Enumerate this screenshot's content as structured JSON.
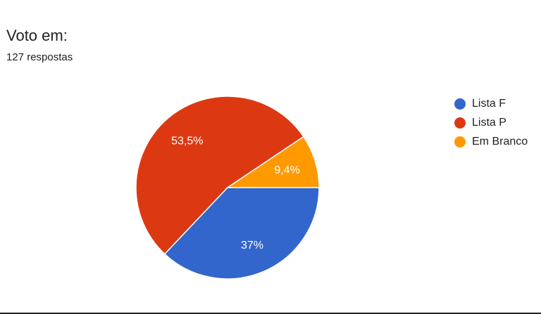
{
  "header": {
    "title": "Voto em:",
    "subtitle": "127 respostas"
  },
  "chart_data": {
    "type": "pie",
    "title": "Voto em:",
    "start_angle": "3 o'clock, clockwise",
    "legend_position": "right",
    "slices": [
      {
        "label": "Lista F",
        "value": 37,
        "display": "37%",
        "color": "#3366cc"
      },
      {
        "label": "Lista P",
        "value": 53.5,
        "display": "53,5%",
        "color": "#dc3912"
      },
      {
        "label": "Em Branco",
        "value": 9.4,
        "display": "9,4%",
        "color": "#ff9900"
      }
    ]
  }
}
